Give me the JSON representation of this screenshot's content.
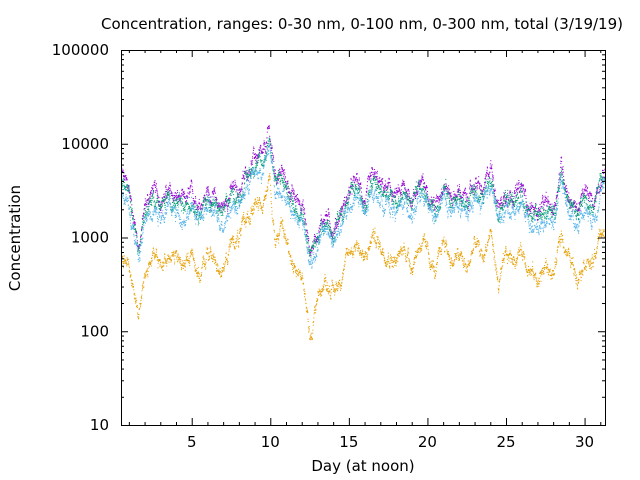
{
  "chart_data": {
    "type": "scatter",
    "title": "Concentration, ranges: 0-30 nm, 0-100 nm, 0-300 nm, total (3/19/19)",
    "xlabel": "Day (at noon)",
    "ylabel": "Concentration",
    "xlim": [
      0.5,
      31.3
    ],
    "ylim": [
      10,
      100000
    ],
    "yscale": "log",
    "grid": false,
    "legend": "none",
    "x_ticks": [
      5,
      10,
      15,
      20,
      25,
      30
    ],
    "x_tick_labels": [
      "5",
      "10",
      "15",
      "20",
      "25",
      "30"
    ],
    "y_ticks": [
      10,
      100,
      1000,
      10000,
      100000
    ],
    "y_tick_labels": [
      "10",
      "100",
      "1000",
      "10000",
      "100000"
    ],
    "colors": [
      "#9400d3",
      "#009e73",
      "#56b4e9",
      "#e69f00"
    ],
    "anchors_x": [
      0.5,
      1.0,
      1.6,
      2.0,
      2.5,
      3.0,
      3.5,
      4.0,
      4.5,
      5.0,
      5.5,
      6.0,
      6.5,
      7.0,
      7.5,
      8.0,
      8.5,
      9.0,
      9.5,
      9.9,
      10.3,
      10.7,
      11.0,
      11.5,
      12.0,
      12.5,
      13.0,
      13.5,
      14.0,
      14.5,
      15.0,
      15.5,
      16.0,
      16.5,
      17.0,
      17.5,
      18.0,
      18.5,
      19.0,
      19.5,
      20.0,
      20.5,
      21.0,
      21.5,
      22.0,
      22.5,
      23.0,
      23.5,
      24.0,
      24.5,
      25.0,
      25.5,
      26.0,
      26.5,
      27.0,
      27.5,
      28.0,
      28.5,
      29.0,
      29.5,
      30.0,
      30.5,
      31.0,
      31.3
    ],
    "series": [
      {
        "values": [
          5000,
          3200,
          800,
          2200,
          3300,
          2600,
          3000,
          2700,
          2400,
          3000,
          2300,
          3100,
          2500,
          2100,
          3300,
          3200,
          5200,
          7500,
          7000,
          14000,
          4500,
          5200,
          3800,
          2600,
          2500,
          700,
          1200,
          1800,
          1200,
          2000,
          3000,
          4200,
          2400,
          4600,
          3600,
          3300,
          2700,
          3500,
          2600,
          3900,
          3200,
          2200,
          4100,
          2700,
          3100,
          2500,
          4000,
          2900,
          6000,
          2200,
          3000,
          2900,
          3400,
          2100,
          1900,
          2300,
          2000,
          6200,
          2600,
          2000,
          3100,
          2300,
          4400,
          5200
        ]
      },
      {
        "values": [
          4200,
          2700,
          700,
          1900,
          2800,
          2200,
          2600,
          2300,
          2000,
          2600,
          1900,
          2600,
          2100,
          1800,
          2800,
          2700,
          4500,
          6400,
          6000,
          12000,
          3900,
          4400,
          3300,
          2200,
          2100,
          620,
          1050,
          1600,
          1050,
          1700,
          2600,
          3600,
          2050,
          4000,
          3100,
          2800,
          2300,
          3000,
          2250,
          3300,
          2700,
          1900,
          3500,
          2350,
          2650,
          2150,
          3400,
          2500,
          5100,
          1850,
          2600,
          2450,
          2900,
          1800,
          1650,
          1950,
          1750,
          5300,
          2250,
          1700,
          2700,
          2000,
          3800,
          4500
        ]
      },
      {
        "values": [
          3400,
          2200,
          560,
          1500,
          2200,
          1750,
          2100,
          1850,
          1600,
          2100,
          1550,
          2100,
          1700,
          1450,
          2250,
          2200,
          3600,
          5100,
          4800,
          9500,
          3100,
          3500,
          2600,
          1750,
          1700,
          500,
          850,
          1300,
          850,
          1350,
          2100,
          2900,
          1650,
          3200,
          2450,
          2250,
          1850,
          2400,
          1800,
          2650,
          2150,
          1500,
          2800,
          1850,
          2100,
          1700,
          2700,
          2000,
          4100,
          1450,
          2050,
          1950,
          2300,
          1450,
          1300,
          1550,
          1400,
          4200,
          1800,
          1350,
          2150,
          1600,
          3000,
          3600
        ]
      },
      {
        "values": [
          700,
          500,
          150,
          400,
          650,
          500,
          700,
          600,
          500,
          700,
          380,
          700,
          550,
          450,
          900,
          1000,
          1700,
          2200,
          2000,
          5000,
          900,
          1300,
          900,
          500,
          400,
          80,
          250,
          350,
          260,
          400,
          700,
          900,
          550,
          1100,
          800,
          650,
          550,
          800,
          500,
          900,
          700,
          400,
          1000,
          550,
          650,
          450,
          900,
          600,
          1200,
          300,
          650,
          600,
          750,
          450,
          350,
          500,
          400,
          1100,
          600,
          400,
          600,
          500,
          1200,
          1000
        ]
      }
    ]
  }
}
